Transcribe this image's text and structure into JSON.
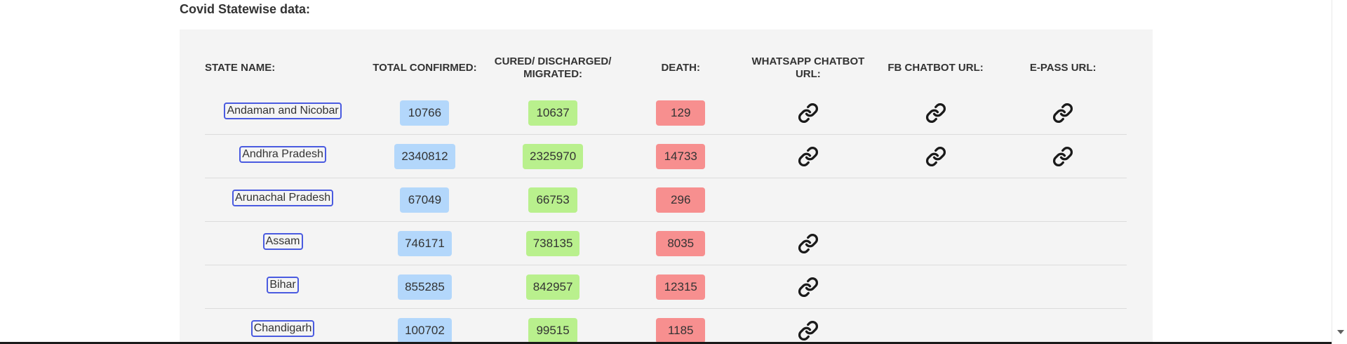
{
  "section": {
    "title": "Covid Statewise data:"
  },
  "table": {
    "headers": {
      "state": "STATE NAME:",
      "confirmed": "TOTAL CONFIRMED:",
      "cured": "CURED/ DISCHARGED/ MIGRATED:",
      "death": "DEATH:",
      "whatsapp": "WHATSAPP CHATBOT URL:",
      "fb": "FB CHATBOT URL:",
      "epass": "E-PASS URL:"
    },
    "rows": [
      {
        "state": "Andaman and Nicobar",
        "confirmed": "10766",
        "cured": "10637",
        "death": "129",
        "whatsapp": true,
        "fb": true,
        "epass": true
      },
      {
        "state": "Andhra Pradesh",
        "confirmed": "2340812",
        "cured": "2325970",
        "death": "14733",
        "whatsapp": true,
        "fb": true,
        "epass": true
      },
      {
        "state": "Arunachal Pradesh",
        "confirmed": "67049",
        "cured": "66753",
        "death": "296",
        "whatsapp": false,
        "fb": false,
        "epass": false
      },
      {
        "state": "Assam",
        "confirmed": "746171",
        "cured": "738135",
        "death": "8035",
        "whatsapp": true,
        "fb": false,
        "epass": false
      },
      {
        "state": "Bihar",
        "confirmed": "855285",
        "cured": "842957",
        "death": "12315",
        "whatsapp": true,
        "fb": false,
        "epass": false
      },
      {
        "state": "Chandigarh",
        "confirmed": "100702",
        "cured": "99515",
        "death": "1185",
        "whatsapp": true,
        "fb": false,
        "epass": false
      }
    ]
  },
  "icons": {
    "url_link": "link-icon"
  },
  "colors": {
    "confirmed_bg": "#b3d7fb",
    "cured_bg": "#b9f08d",
    "death_bg": "#f78f8f",
    "state_link_border": "#4a5be0",
    "panel_bg": "#f4f4f4"
  }
}
